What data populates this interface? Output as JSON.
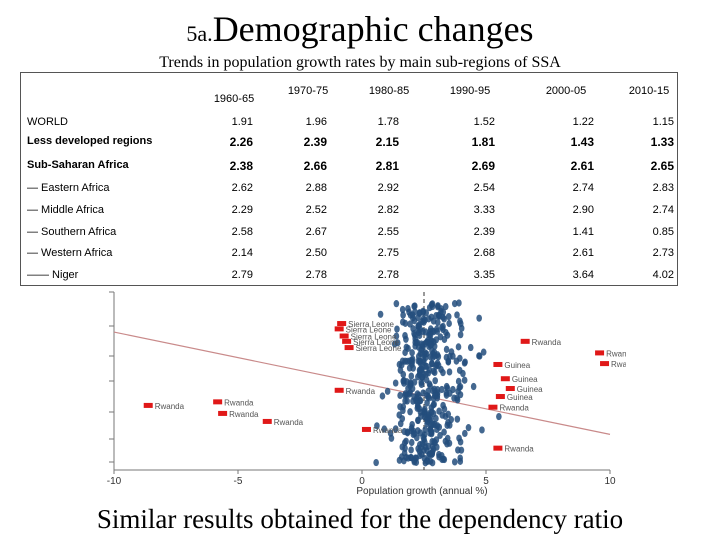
{
  "title": {
    "prefix": "5a.",
    "main": "Demographic changes"
  },
  "subtitle": "Trends in population growth rates by main sub-regions of SSA",
  "table": {
    "columns": [
      "1960-65",
      "1970-75",
      "1980-85",
      "1990-95",
      "2000-05",
      "2010-15"
    ],
    "rows": [
      {
        "label": "WORLD",
        "values": [
          "1.91",
          "1.96",
          "1.78",
          "1.52",
          "1.22",
          "1.15"
        ],
        "bold": false
      },
      {
        "label": "Less developed regions",
        "values": [
          "2.26",
          "2.39",
          "2.15",
          "1.81",
          "1.43",
          "1.33"
        ],
        "bold": true
      },
      {
        "label": "Sub-Saharan Africa",
        "values": [
          "2.38",
          "2.66",
          "2.81",
          "2.69",
          "2.61",
          "2.65"
        ],
        "bold": true
      },
      {
        "label": "—   Eastern Africa",
        "values": [
          "2.62",
          "2.88",
          "2.92",
          "2.54",
          "2.74",
          "2.83"
        ],
        "bold": false
      },
      {
        "label": "—  Middle Africa",
        "values": [
          "2.29",
          "2.52",
          "2.82",
          "3.33",
          "2.90",
          "2.74"
        ],
        "bold": false
      },
      {
        "label": "—  Southern Africa",
        "values": [
          "2.58",
          "2.67",
          "2.55",
          "2.39",
          "1.41",
          "0.85"
        ],
        "bold": false
      },
      {
        "label": "—  Western Africa",
        "values": [
          "2.14",
          "2.50",
          "2.75",
          "2.68",
          "2.61",
          "2.73"
        ],
        "bold": false
      },
      {
        "label": "—— Niger",
        "values": [
          "2.79",
          "2.78",
          "2.78",
          "3.35",
          "3.64",
          "4.02"
        ],
        "bold": false
      }
    ]
  },
  "chart_data": {
    "type": "scatter",
    "xlabel": "Population growth (annual %)",
    "xticks": [
      "-10",
      "-5",
      "0",
      "5",
      "10"
    ],
    "xlim": [
      -10,
      10
    ],
    "ylim": [
      8,
      28
    ],
    "vline_x": 2.5,
    "trend_line": {
      "x": [
        -10,
        10
      ],
      "y": [
        23.5,
        12
      ]
    },
    "labeled_points": [
      {
        "label": "Rwanda",
        "x": -8.6,
        "y": 15.2
      },
      {
        "label": "Rwanda",
        "x": -5.8,
        "y": 15.6
      },
      {
        "label": "Rwanda",
        "x": -5.6,
        "y": 14.3
      },
      {
        "label": "Rwanda",
        "x": -3.8,
        "y": 13.4
      },
      {
        "label": "Rwanda",
        "x": -0.9,
        "y": 16.9
      },
      {
        "label": "Rwanda",
        "x": 0.2,
        "y": 12.5
      },
      {
        "label": "Sierra Leone",
        "x": -0.8,
        "y": 24.4
      },
      {
        "label": "Sierra Leone",
        "x": -0.9,
        "y": 23.8
      },
      {
        "label": "Sierra Leone",
        "x": -0.7,
        "y": 23.0
      },
      {
        "label": "Sierra Leone",
        "x": -0.6,
        "y": 22.4
      },
      {
        "label": "Sierra Leone",
        "x": -0.5,
        "y": 21.7
      },
      {
        "label": "Rwanda",
        "x": 6.6,
        "y": 22.4
      },
      {
        "label": "Rwanda",
        "x": 9.6,
        "y": 21.1
      },
      {
        "label": "Rwanda",
        "x": 9.8,
        "y": 19.9
      },
      {
        "label": "Guinea",
        "x": 5.5,
        "y": 19.8
      },
      {
        "label": "Guinea",
        "x": 5.8,
        "y": 18.2
      },
      {
        "label": "Guinea",
        "x": 6.0,
        "y": 17.1
      },
      {
        "label": "Guinea",
        "x": 5.6,
        "y": 16.2
      },
      {
        "label": "Rwanda",
        "x": 5.3,
        "y": 15.0
      },
      {
        "label": "Rwanda",
        "x": 5.5,
        "y": 10.4
      }
    ]
  }
}
